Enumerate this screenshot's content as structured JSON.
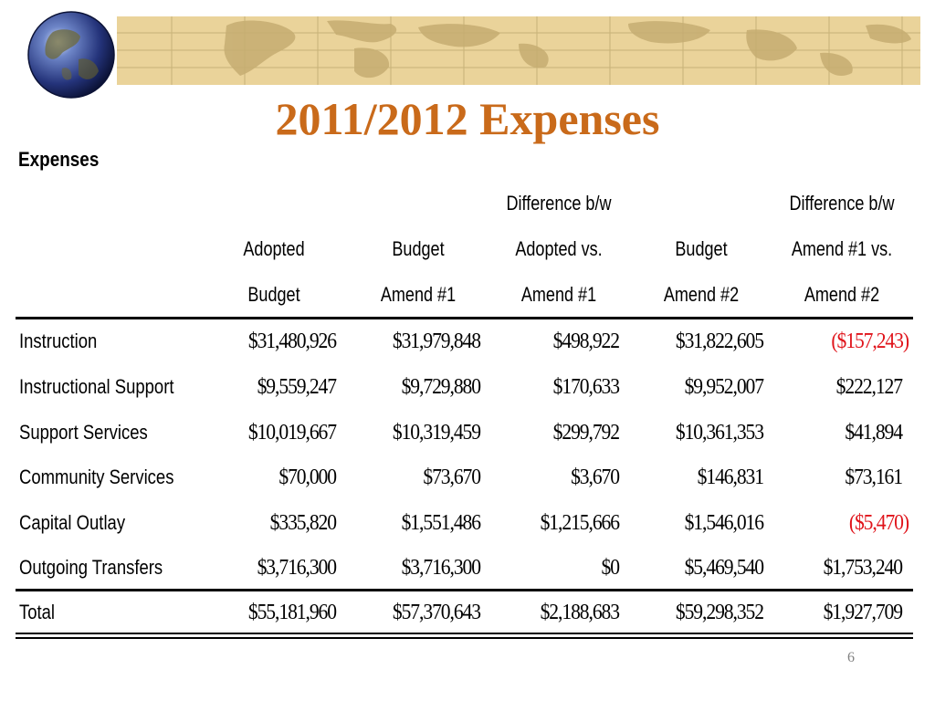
{
  "slide": {
    "title": "2011/2012 Expenses",
    "page_number": "6",
    "banner_color": "#ead39a",
    "title_color": "#c96a1a",
    "negative_color": "#e0141b",
    "icons": {
      "globe": "globe-icon",
      "banner": "world-map-banner"
    }
  },
  "table": {
    "caption": "Expenses",
    "headers": {
      "adopted_budget": [
        "",
        "Adopted",
        "Budget"
      ],
      "budget_amend_1": [
        "",
        "Budget",
        "Amend #1"
      ],
      "diff_adopted_amend_1": [
        "Difference b/w",
        "Adopted vs.",
        "Amend #1"
      ],
      "budget_amend_2": [
        "",
        "Budget",
        "Amend #2"
      ],
      "diff_amend_1_amend_2": [
        "Difference b/w",
        "Amend #1 vs.",
        "Amend #2"
      ]
    },
    "rows": [
      {
        "label": "Instruction",
        "values": [
          "$31,480,926",
          "$31,979,848",
          "$498,922",
          "$31,822,605",
          "($157,243)"
        ],
        "negative": [
          false,
          false,
          false,
          false,
          true
        ]
      },
      {
        "label": "Instructional Support",
        "values": [
          "$9,559,247",
          "$9,729,880",
          "$170,633",
          "$9,952,007",
          "$222,127"
        ],
        "negative": [
          false,
          false,
          false,
          false,
          false
        ]
      },
      {
        "label": "Support Services",
        "values": [
          "$10,019,667",
          "$10,319,459",
          "$299,792",
          "$10,361,353",
          "$41,894"
        ],
        "negative": [
          false,
          false,
          false,
          false,
          false
        ]
      },
      {
        "label": "Community Services",
        "values": [
          "$70,000",
          "$73,670",
          "$3,670",
          "$146,831",
          "$73,161"
        ],
        "negative": [
          false,
          false,
          false,
          false,
          false
        ]
      },
      {
        "label": "Capital Outlay",
        "values": [
          "$335,820",
          "$1,551,486",
          "$1,215,666",
          "$1,546,016",
          "($5,470)"
        ],
        "negative": [
          false,
          false,
          false,
          false,
          true
        ]
      },
      {
        "label": "Outgoing Transfers",
        "values": [
          "$3,716,300",
          "$3,716,300",
          "$0",
          "$5,469,540",
          "$1,753,240"
        ],
        "negative": [
          false,
          false,
          false,
          false,
          false
        ]
      }
    ],
    "total": {
      "label": "Total",
      "values": [
        "$55,181,960",
        "$57,370,643",
        "$2,188,683",
        "$59,298,352",
        "$1,927,709"
      ]
    }
  }
}
